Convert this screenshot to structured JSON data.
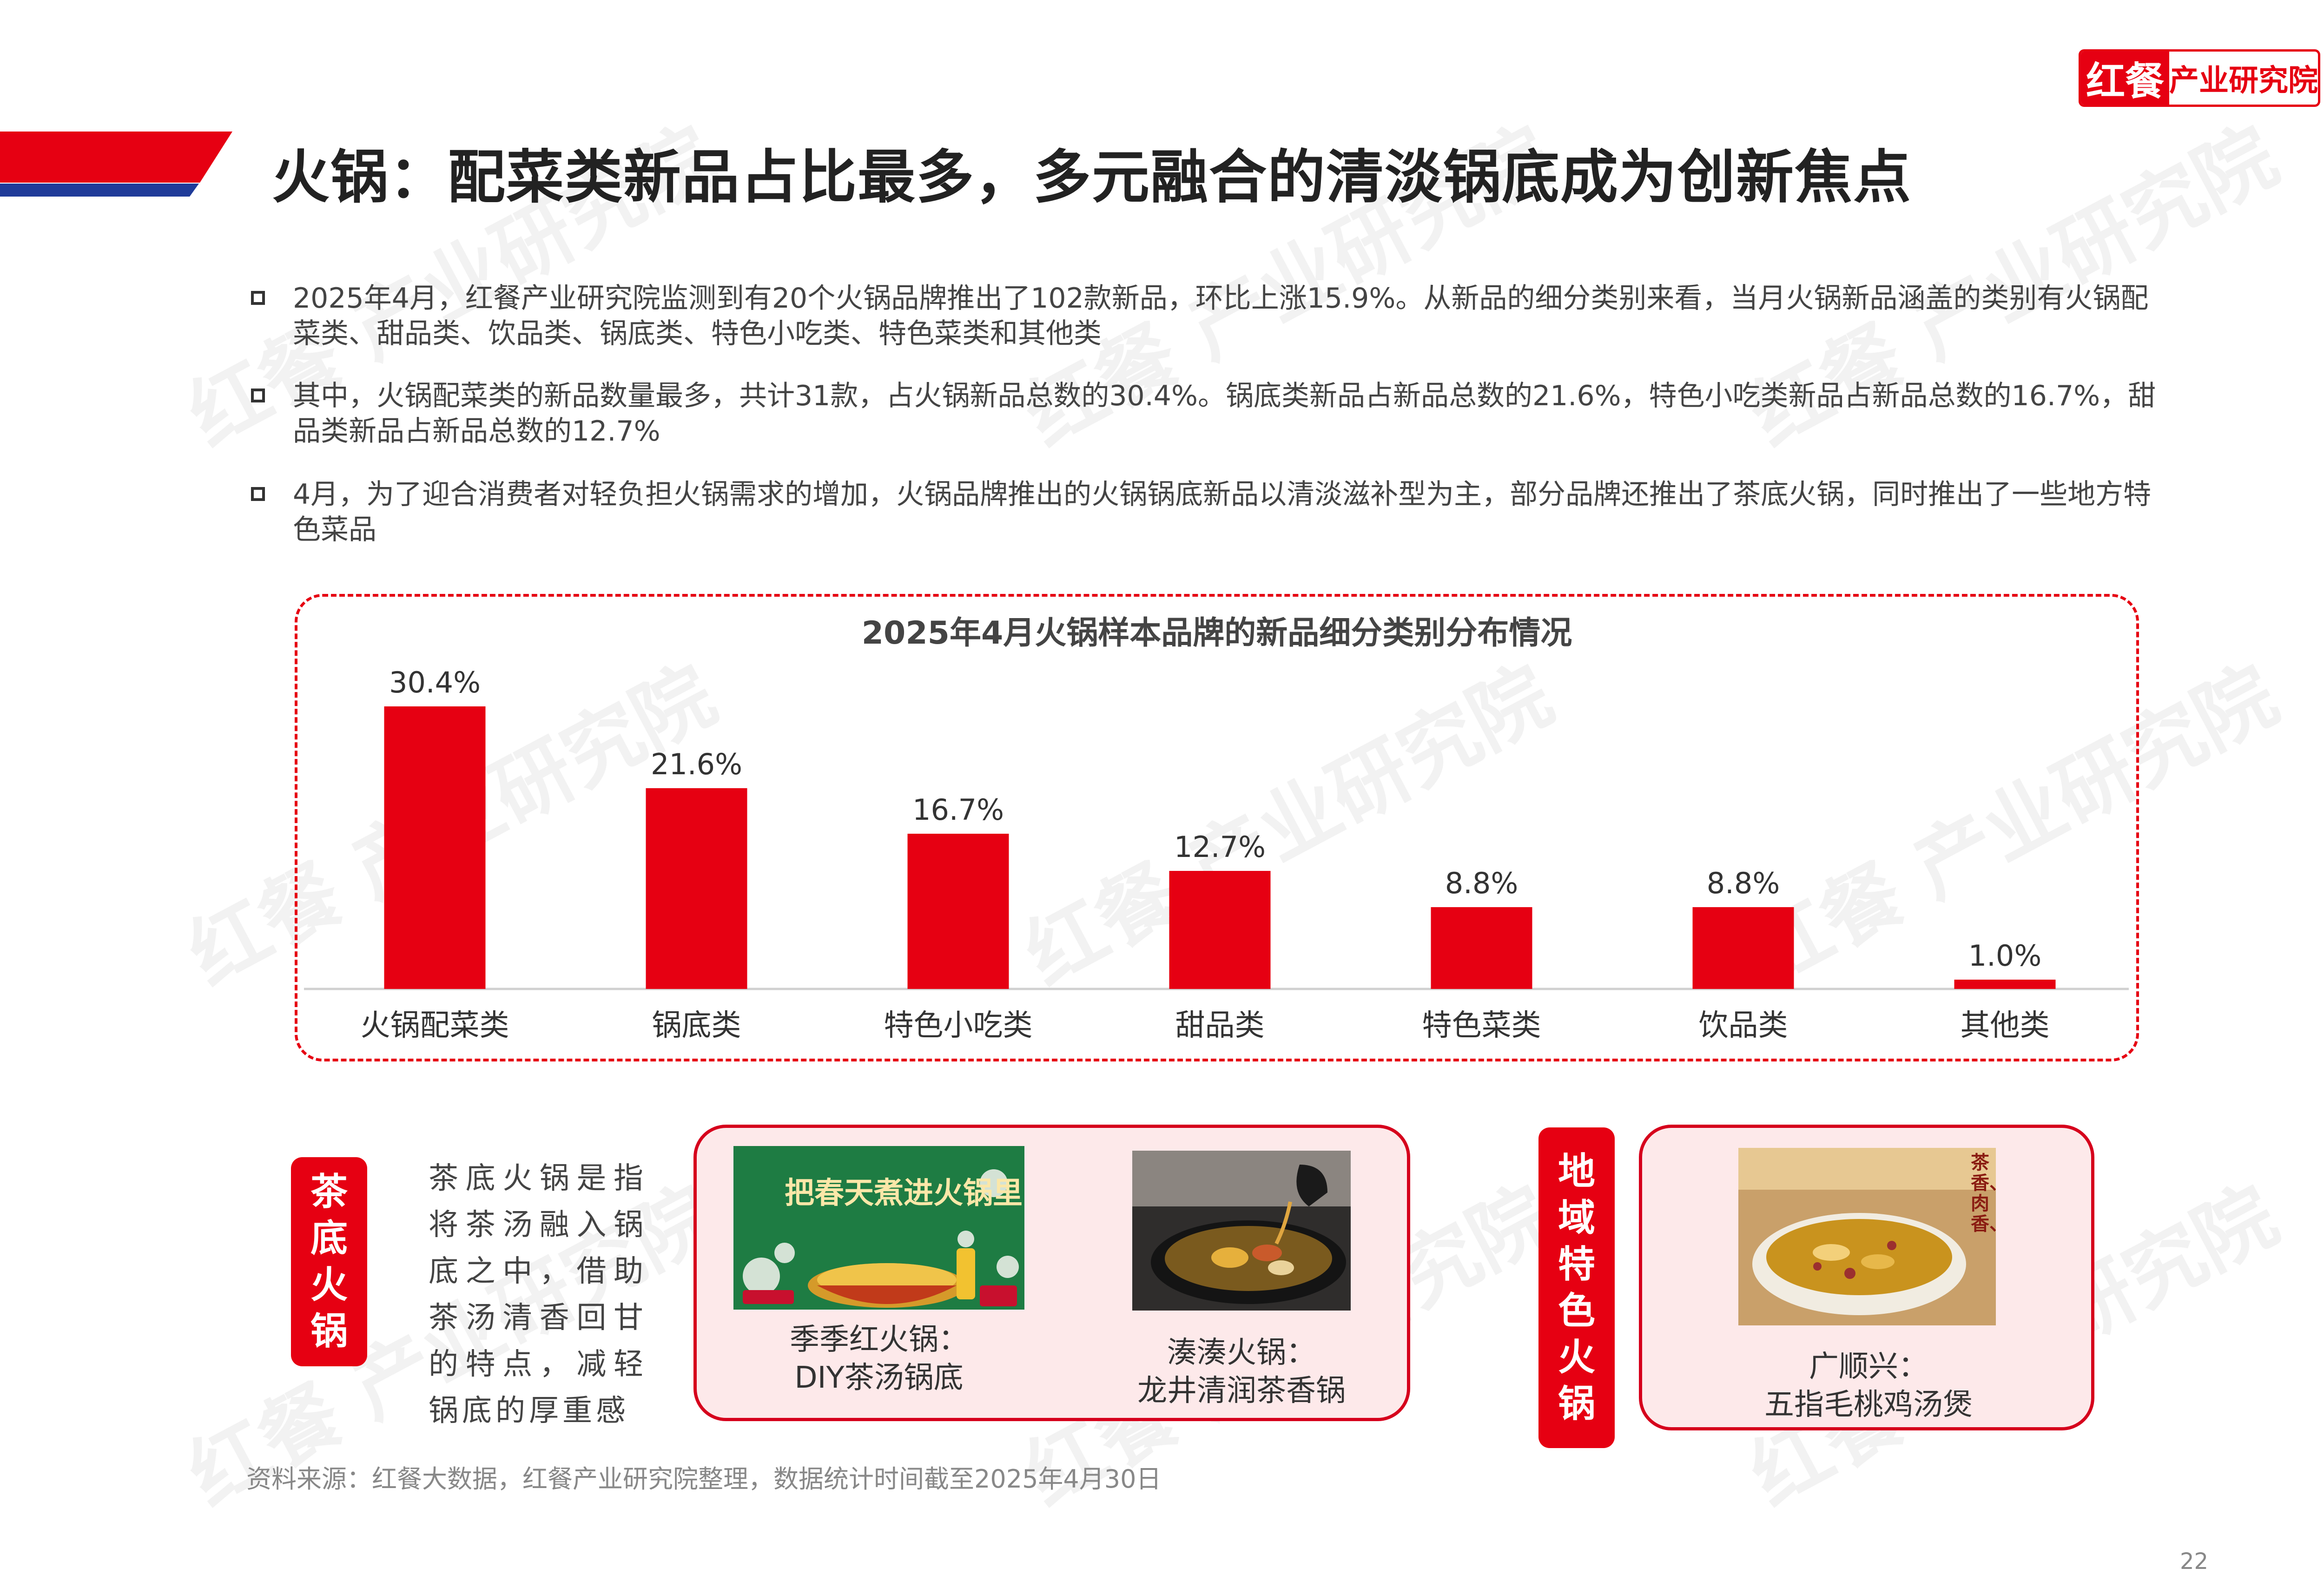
{
  "header": {
    "logo_mark": "红餐",
    "logo_text": "产业研究院",
    "title": "火锅：配菜类新品占比最多，多元融合的清淡锅底成为创新焦点"
  },
  "watermark": "红餐 产业研究院",
  "bullets": [
    "2025年4月，红餐产业研究院监测到有20个火锅品牌推出了102款新品，环比上涨15.9%。从新品的细分类别来看，当月火锅新品涵盖的类别有火锅配菜类、甜品类、饮品类、锅底类、特色小吃类、特色菜类和其他类",
    "其中，火锅配菜类的新品数量最多，共计31款，占火锅新品总数的30.4%。锅底类新品占新品总数的21.6%，特色小吃类新品占新品总数的16.7%，甜品类新品占新品总数的12.7%",
    "4月，为了迎合消费者对轻负担火锅需求的增加，火锅品牌推出的火锅锅底新品以清淡滋补型为主，部分品牌还推出了茶底火锅，同时推出了一些地方特色菜品"
  ],
  "chart_data": {
    "type": "bar",
    "title": "2025年4月火锅样本品牌的新品细分类别分布情况",
    "categories": [
      "火锅配菜类",
      "锅底类",
      "特色小吃类",
      "甜品类",
      "特色菜类",
      "饮品类",
      "其他类"
    ],
    "values": [
      30.4,
      21.6,
      16.7,
      12.7,
      8.8,
      8.8,
      1.0
    ],
    "labels": [
      "30.4%",
      "21.6%",
      "16.7%",
      "12.7%",
      "8.8%",
      "8.8%",
      "1.0%"
    ],
    "unit": "%",
    "ylim": [
      0,
      33
    ],
    "grid": false,
    "bar_color": "#e60012"
  },
  "tea_section": {
    "label": "茶底火锅",
    "description": "茶底火锅是指将茶汤融入锅底之中，借助茶汤清香回甘的特点，减轻锅底的厚重感",
    "items": [
      {
        "caption_line1": "季季红火锅：",
        "caption_line2": "DIY茶汤锅底",
        "image_text": "把春天煮进火锅里"
      },
      {
        "caption_line1": "湊湊火锅：",
        "caption_line2": "龙井清润茶香锅"
      }
    ]
  },
  "regional_section": {
    "label": "地域特色火锅",
    "items": [
      {
        "caption_line1": "广顺兴：",
        "caption_line2": "五指毛桃鸡汤煲",
        "image_text": "茶香、肉香、"
      }
    ]
  },
  "footer": {
    "source": "资料来源：红餐大数据，红餐产业研究院整理，数据统计时间截至2025年4月30日",
    "page_number": "22"
  },
  "colors": {
    "accent": "#e60012",
    "blue": "#1f3b99",
    "panel_bg": "#fde9ea"
  }
}
